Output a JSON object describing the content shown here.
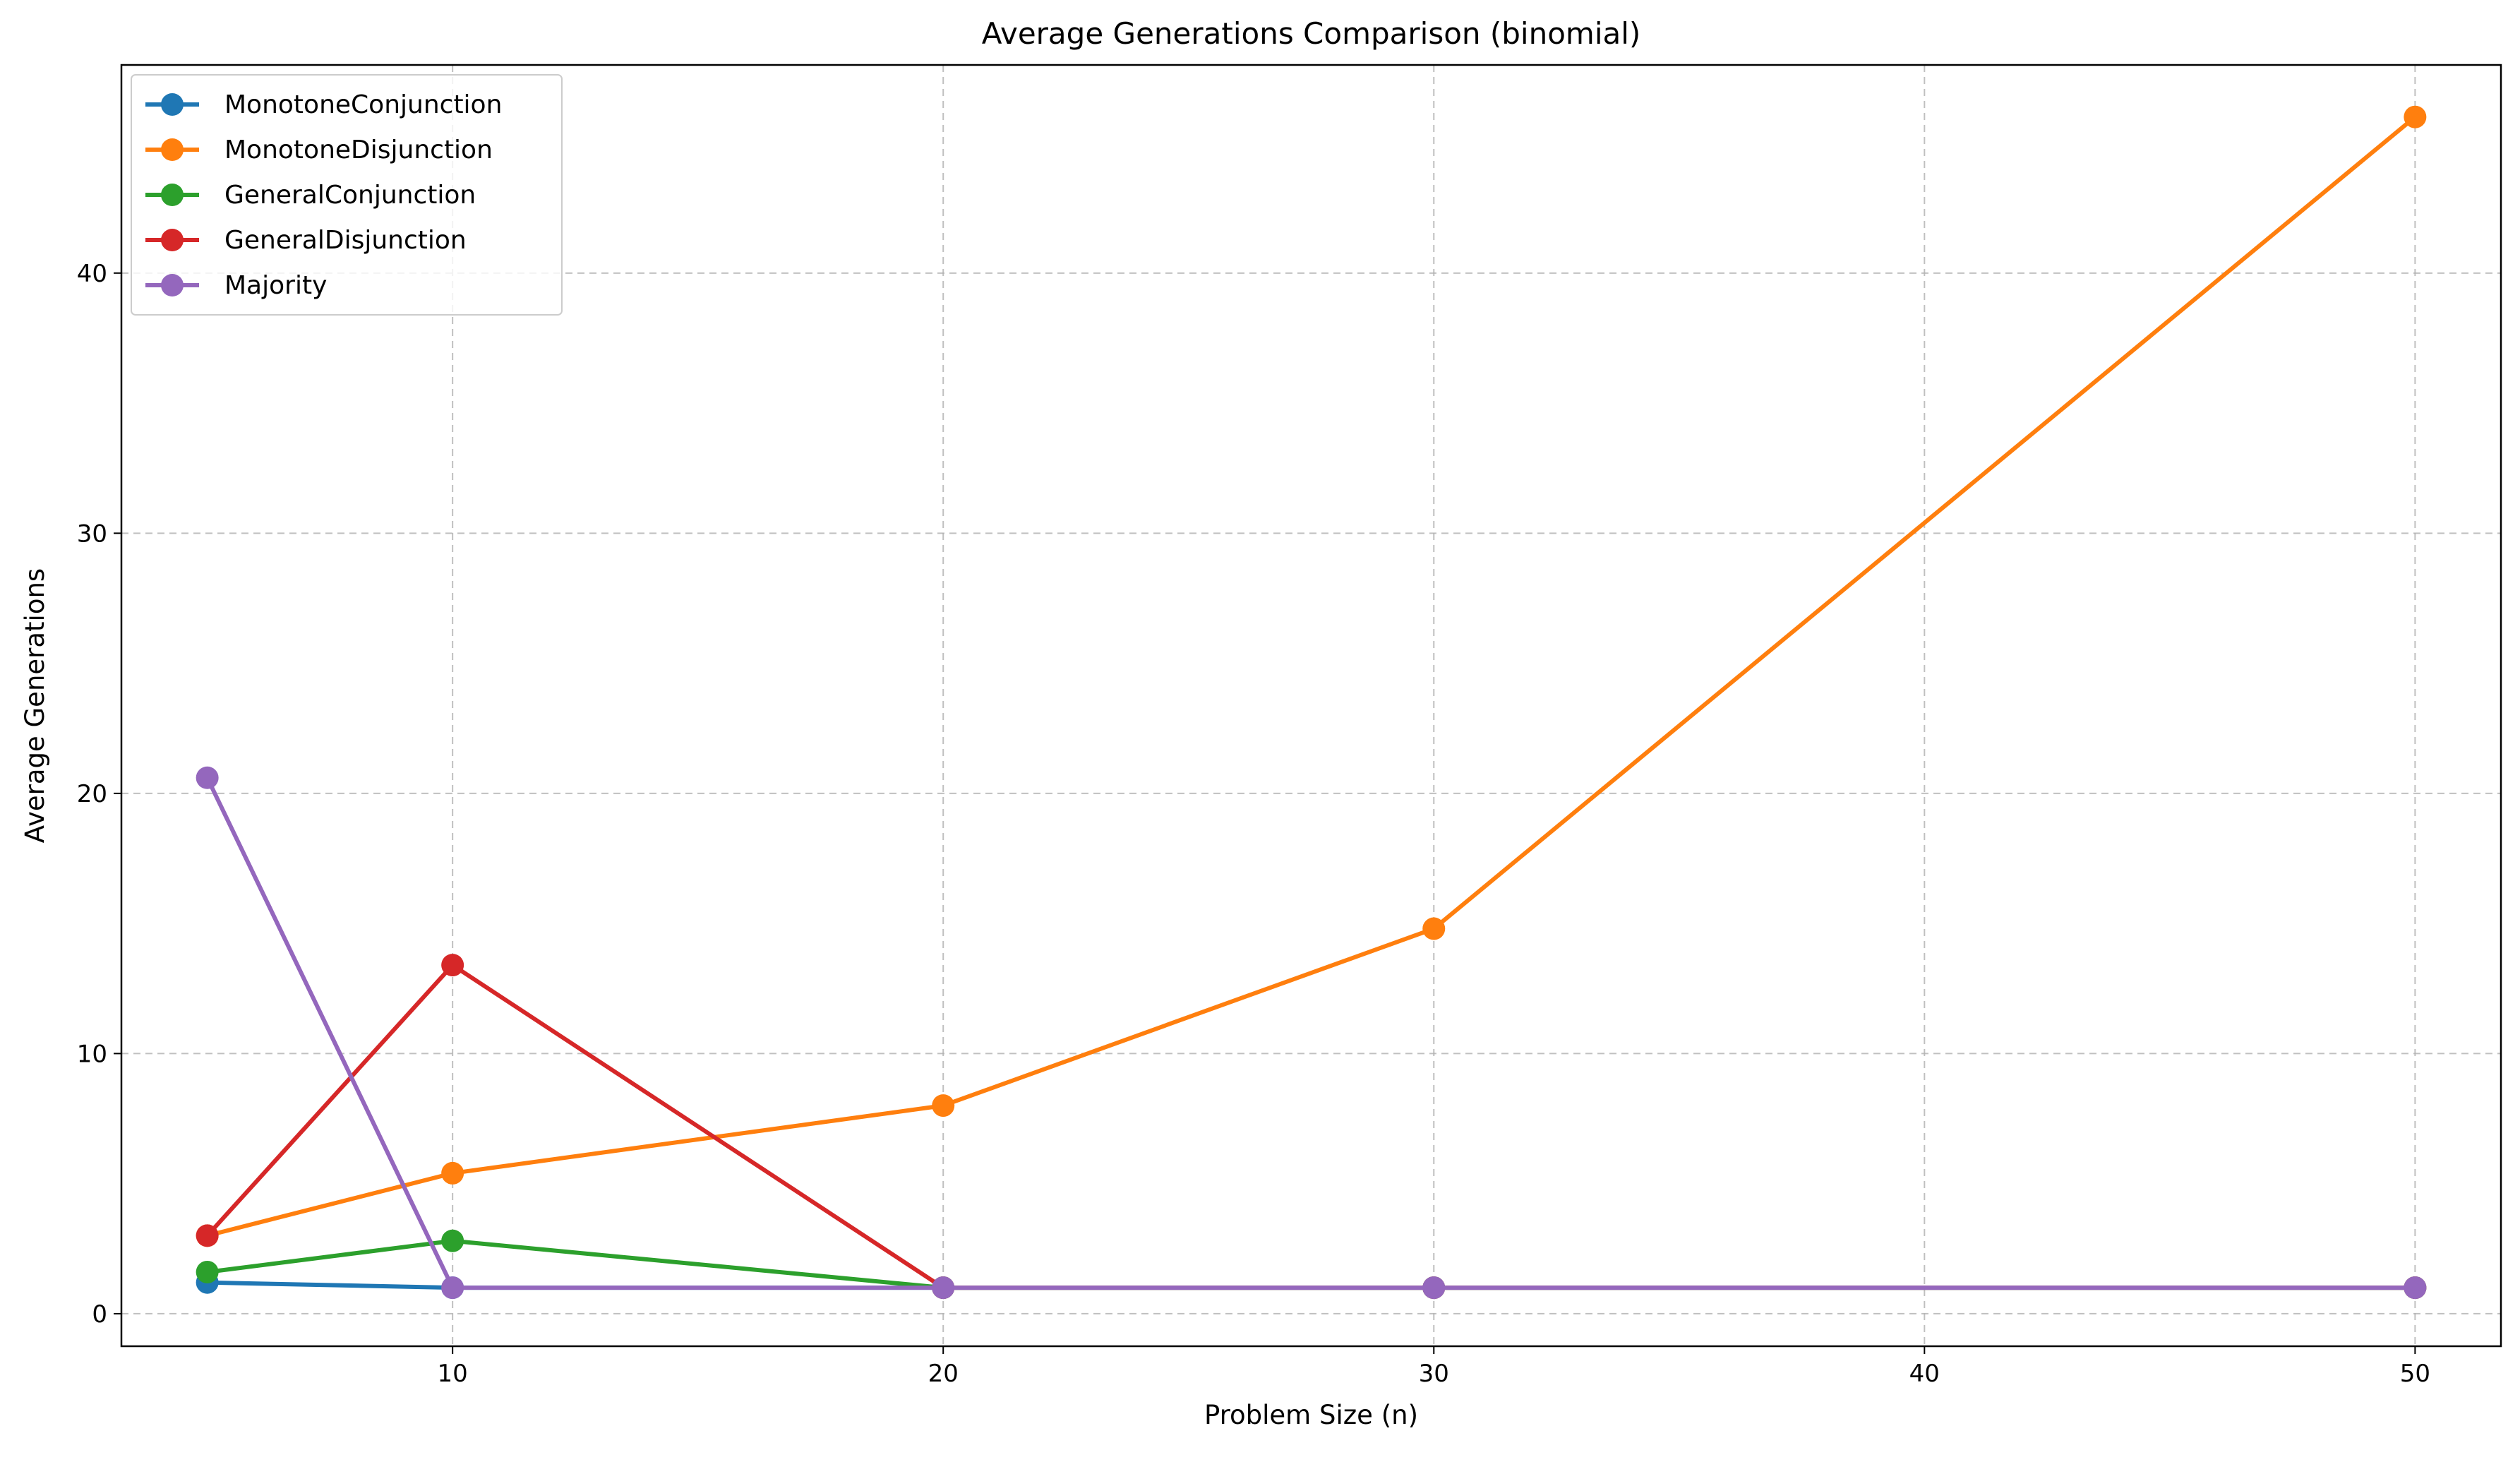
{
  "chart_data": {
    "type": "line",
    "title": "Average Generations Comparison (binomial)",
    "xlabel": "Problem Size (n)",
    "ylabel": "Average Generations",
    "x": [
      5,
      10,
      20,
      30,
      50
    ],
    "xlim": [
      3.25,
      51.75
    ],
    "ylim": [
      -1.25,
      48.0
    ],
    "xticks": [
      10,
      20,
      30,
      40,
      50
    ],
    "yticks": [
      0,
      10,
      20,
      30,
      40
    ],
    "grid": true,
    "legend_position": "upper-left",
    "series": [
      {
        "name": "MonotoneConjunction",
        "color": "#1f77b4",
        "values": [
          1.2,
          1.0,
          1.0,
          1.0,
          1.0
        ]
      },
      {
        "name": "MonotoneDisjunction",
        "color": "#ff7f0e",
        "values": [
          3.0,
          5.4,
          8.0,
          14.8,
          46.0
        ]
      },
      {
        "name": "GeneralConjunction",
        "color": "#2ca02c",
        "values": [
          1.6,
          2.8,
          1.0,
          1.0,
          1.0
        ]
      },
      {
        "name": "GeneralDisjunction",
        "color": "#d62728",
        "values": [
          3.0,
          13.4,
          1.0,
          1.0,
          1.0
        ]
      },
      {
        "name": "Majority",
        "color": "#9467bd",
        "values": [
          20.6,
          1.0,
          1.0,
          1.0,
          1.0
        ]
      }
    ]
  }
}
